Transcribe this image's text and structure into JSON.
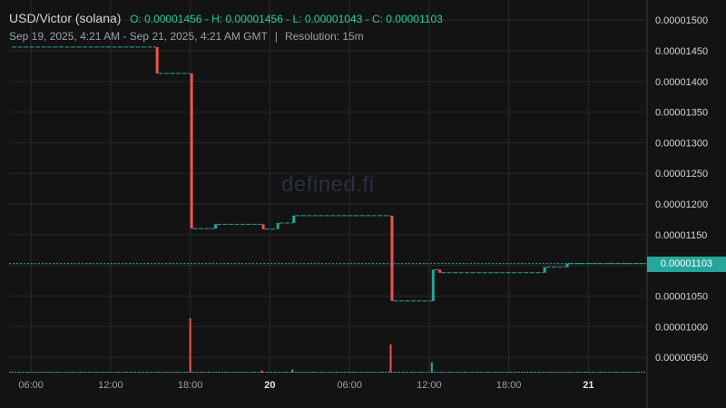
{
  "header": {
    "symbol": "USD/Victor (solana)",
    "ohlc": "O: 0.00001456 - H: 0.00001456 - L: 0.00001043 - C: 0.00001103",
    "range": "Sep 19, 2025, 4:21 AM - Sep 21, 2025, 4:21 AM GMT",
    "separator": "|",
    "resolution": "Resolution: 15m"
  },
  "watermark": "defined.fi",
  "last_price_label": "0.00001103",
  "colors": {
    "up": "#26a69a",
    "down": "#ef5350",
    "background": "#131313",
    "grid": "#2a2a2a"
  },
  "chart_data": {
    "type": "candlestick",
    "x_tick_labels": [
      "06:00",
      "12:00",
      "18:00",
      "20",
      "06:00",
      "12:00",
      "18:00",
      "21"
    ],
    "x_tick_hours": [
      6,
      12,
      18,
      24,
      30,
      36,
      42,
      48
    ],
    "x_range_hours": [
      4.35,
      52.35
    ],
    "y_tick_labels": [
      "0.00001500",
      "0.00001450",
      "0.00001400",
      "0.00001350",
      "0.00001300",
      "0.00001250",
      "0.00001200",
      "0.00001150",
      "0.00001100",
      "0.00001050",
      "0.00001000",
      "0.00000950"
    ],
    "y_ticks": [
      1.5e-05,
      1.45e-05,
      1.4e-05,
      1.35e-05,
      1.3e-05,
      1.25e-05,
      1.2e-05,
      1.15e-05,
      1.1e-05,
      1.05e-05,
      1e-05,
      9.5e-06
    ],
    "ylim": [
      9.25e-06,
      1.515e-05
    ],
    "last_price": 1.103e-05,
    "price_steps": [
      {
        "start": 4.35,
        "end": 15.4,
        "open": 1.456e-05,
        "close": 1.456e-05
      },
      {
        "start": 15.4,
        "end": 18.0,
        "open": 1.456e-05,
        "close": 1.413e-05
      },
      {
        "start": 18.0,
        "end": 19.8,
        "open": 1.413e-05,
        "close": 1.16e-05
      },
      {
        "start": 19.8,
        "end": 23.4,
        "open": 1.16e-05,
        "close": 1.167e-05
      },
      {
        "start": 23.4,
        "end": 24.5,
        "open": 1.167e-05,
        "close": 1.159e-05
      },
      {
        "start": 24.5,
        "end": 25.7,
        "open": 1.159e-05,
        "close": 1.169e-05
      },
      {
        "start": 25.7,
        "end": 33.1,
        "open": 1.169e-05,
        "close": 1.181e-05
      },
      {
        "start": 33.1,
        "end": 36.2,
        "open": 1.181e-05,
        "close": 1.042e-05
      },
      {
        "start": 36.2,
        "end": 36.7,
        "open": 1.042e-05,
        "close": 1.093e-05
      },
      {
        "start": 36.7,
        "end": 44.6,
        "open": 1.093e-05,
        "close": 1.088e-05
      },
      {
        "start": 44.6,
        "end": 46.3,
        "open": 1.088e-05,
        "close": 1.097e-05
      },
      {
        "start": 46.3,
        "end": 52.35,
        "open": 1.097e-05,
        "close": 1.103e-05
      }
    ],
    "volume_spikes": [
      {
        "t": 18.0,
        "level": 1.0,
        "dir": "down"
      },
      {
        "t": 33.1,
        "level": 0.52,
        "dir": "down"
      },
      {
        "t": 36.2,
        "level": 0.19,
        "dir": "up"
      },
      {
        "t": 25.7,
        "level": 0.06,
        "dir": "up"
      },
      {
        "t": 23.4,
        "level": 0.04,
        "dir": "down"
      }
    ]
  }
}
